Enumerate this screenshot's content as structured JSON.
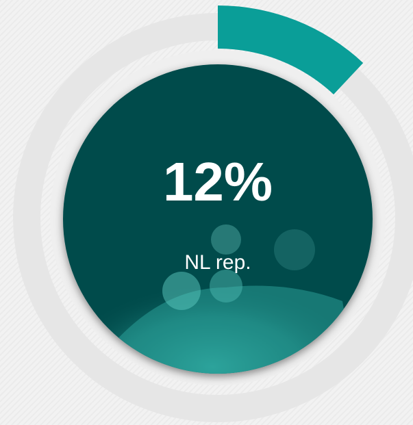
{
  "chart_data": {
    "type": "gauge",
    "categories": [
      "NL rep."
    ],
    "values": [
      12
    ],
    "value_labels": [
      "12%"
    ],
    "ylim": [
      0,
      100
    ],
    "color": "#0a9e98"
  }
}
